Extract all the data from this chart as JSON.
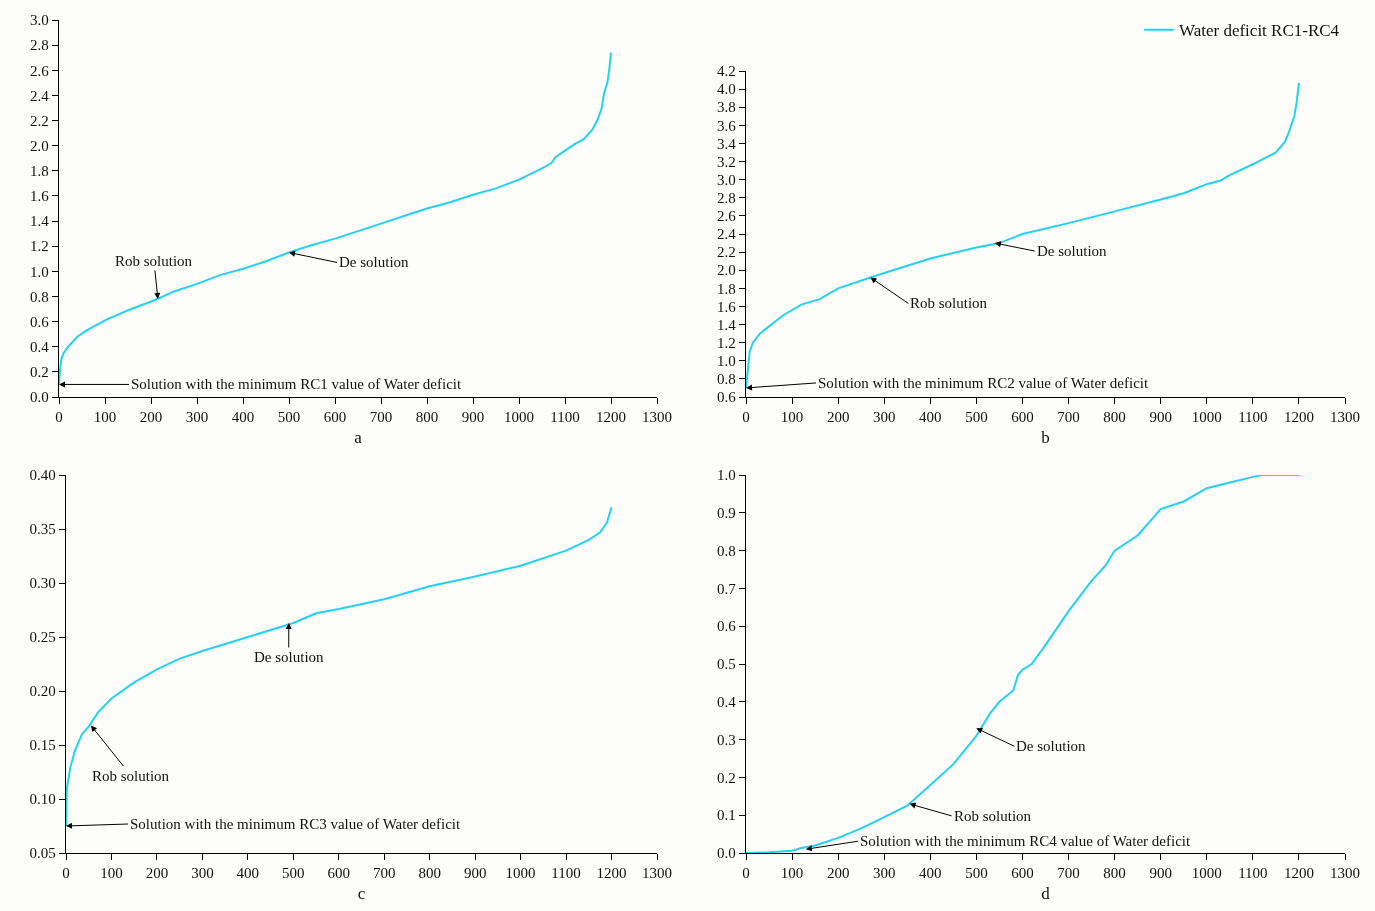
{
  "chart_data": [
    {
      "type": "line",
      "xlabel": "a",
      "xlim": [
        0,
        1300
      ],
      "xticks": [
        0,
        100,
        200,
        300,
        400,
        500,
        600,
        700,
        800,
        900,
        1000,
        1100,
        1200,
        1300
      ],
      "ylim": [
        0,
        3
      ],
      "yticks": [
        {
          "value": 0,
          "label": "0.0"
        },
        {
          "value": 0.2,
          "label": "0.2"
        },
        {
          "value": 0.4,
          "label": "0.4"
        },
        {
          "value": 0.6,
          "label": "0.6"
        },
        {
          "value": 0.8,
          "label": "0.8"
        },
        {
          "value": 1,
          "label": "1.0"
        },
        {
          "value": 1.2,
          "label": "1.2"
        },
        {
          "value": 1.4,
          "label": "1.4"
        },
        {
          "value": 1.6,
          "label": "1.6"
        },
        {
          "value": 1.8,
          "label": "1.8"
        },
        {
          "value": 2,
          "label": "2.0"
        },
        {
          "value": 2.2,
          "label": "2.2"
        },
        {
          "value": 2.4,
          "label": "2.4"
        },
        {
          "value": 2.6,
          "label": "2.6"
        },
        {
          "value": 2.8,
          "label": "2.8"
        },
        {
          "value": 3,
          "label": "3.0"
        }
      ],
      "grid": false,
      "legend": false,
      "marker": "none",
      "line_style": "solid",
      "series": [
        {
          "color": "#22d3f0",
          "x": [
            0,
            2,
            5,
            10,
            20,
            40,
            60,
            80,
            100,
            150,
            200,
            220,
            250,
            300,
            350,
            400,
            450,
            500,
            550,
            600,
            650,
            700,
            750,
            800,
            850,
            900,
            950,
            1000,
            1050,
            1070,
            1080,
            1100,
            1120,
            1140,
            1160,
            1170,
            1180,
            1185,
            1192,
            1196,
            1200
          ],
          "values": [
            0.1,
            0.2,
            0.3,
            0.35,
            0.4,
            0.48,
            0.53,
            0.57,
            0.61,
            0.69,
            0.76,
            0.79,
            0.84,
            0.9,
            0.97,
            1.02,
            1.08,
            1.15,
            1.21,
            1.26,
            1.32,
            1.38,
            1.44,
            1.5,
            1.55,
            1.61,
            1.66,
            1.73,
            1.82,
            1.86,
            1.91,
            1.96,
            2.01,
            2.05,
            2.13,
            2.2,
            2.3,
            2.42,
            2.5,
            2.6,
            2.74
          ]
        }
      ],
      "annotations": [
        {
          "text": "Solution with the minimum RC1 value of Water deficit",
          "x": 0,
          "y": 0.1
        },
        {
          "text": "Rob solution",
          "x": 215,
          "y": 0.78
        },
        {
          "text": "De solution",
          "x": 500,
          "y": 1.15
        }
      ]
    },
    {
      "type": "line",
      "xlabel": "b",
      "xlim": [
        0,
        1300
      ],
      "xticks": [
        0,
        100,
        200,
        300,
        400,
        500,
        600,
        700,
        800,
        900,
        1000,
        1100,
        1200,
        1300
      ],
      "ylim": [
        0.6,
        4.2
      ],
      "yticks": [
        0.6,
        0.8,
        {
          "value": 1,
          "label": "1.0"
        },
        1.2,
        1.4,
        1.6,
        1.8,
        {
          "value": 2,
          "label": "2.0"
        },
        2.2,
        2.4,
        2.6,
        2.8,
        {
          "value": 3,
          "label": "3.0"
        },
        3.2,
        3.4,
        3.6,
        3.8,
        {
          "value": 4,
          "label": "4.0"
        },
        4.2
      ],
      "grid": false,
      "legend": "top right",
      "marker": "none",
      "line_style": "solid",
      "series": [
        {
          "name": "Water deficit RC1-RC4",
          "color": "#22d3f0",
          "x": [
            0,
            3,
            8,
            15,
            30,
            60,
            80,
            120,
            160,
            200,
            270,
            300,
            400,
            500,
            550,
            600,
            700,
            800,
            900,
            950,
            1000,
            1030,
            1050,
            1100,
            1150,
            1170,
            1180,
            1190,
            1195,
            1200
          ],
          "values": [
            0.7,
            0.85,
            1.1,
            1.2,
            1.3,
            1.42,
            1.5,
            1.62,
            1.68,
            1.8,
            1.92,
            1.97,
            2.13,
            2.25,
            2.3,
            2.4,
            2.52,
            2.65,
            2.78,
            2.85,
            2.95,
            2.99,
            3.05,
            3.17,
            3.3,
            3.42,
            3.55,
            3.7,
            3.85,
            4.07
          ]
        }
      ],
      "annotations": [
        {
          "text": "Solution with the minimum RC2 value of Water deficit",
          "x": 0,
          "y": 0.7
        },
        {
          "text": "Rob solution",
          "x": 270,
          "y": 1.92
        },
        {
          "text": "De solution",
          "x": 540,
          "y": 2.3
        }
      ]
    },
    {
      "type": "line",
      "xlabel": "c",
      "xlim": [
        0,
        1300
      ],
      "xticks": [
        0,
        100,
        200,
        300,
        400,
        500,
        600,
        700,
        800,
        900,
        1000,
        1100,
        1200,
        1300
      ],
      "ylim": [
        0.05,
        0.4
      ],
      "yticks": [
        {
          "value": 0.05,
          "label": "0.05"
        },
        {
          "value": 0.1,
          "label": "0.10"
        },
        {
          "value": 0.15,
          "label": "0.15"
        },
        {
          "value": 0.2,
          "label": "0.20"
        },
        {
          "value": 0.25,
          "label": "0.25"
        },
        {
          "value": 0.3,
          "label": "0.30"
        },
        {
          "value": 0.35,
          "label": "0.35"
        },
        {
          "value": 0.4,
          "label": "0.40"
        }
      ],
      "grid": false,
      "legend": false,
      "marker": "none",
      "line_style": "solid",
      "series": [
        {
          "color": "#22d3f0",
          "x": [
            0,
            2,
            10,
            20,
            35,
            50,
            70,
            100,
            150,
            200,
            250,
            300,
            400,
            500,
            550,
            600,
            700,
            800,
            900,
            1000,
            1100,
            1150,
            1175,
            1190,
            1200
          ],
          "values": [
            0.075,
            0.11,
            0.13,
            0.145,
            0.16,
            0.167,
            0.18,
            0.193,
            0.208,
            0.22,
            0.23,
            0.237,
            0.25,
            0.263,
            0.272,
            0.276,
            0.285,
            0.297,
            0.306,
            0.316,
            0.33,
            0.34,
            0.347,
            0.356,
            0.37
          ]
        }
      ],
      "annotations": [
        {
          "text": "Solution with the minimum RC3 value of Water deficit",
          "x": 0,
          "y": 0.075
        },
        {
          "text": "Rob solution",
          "x": 55,
          "y": 0.168
        },
        {
          "text": "De solution",
          "x": 490,
          "y": 0.263
        }
      ]
    },
    {
      "type": "line",
      "xlabel": "d",
      "xlim": [
        0,
        1300
      ],
      "xticks": [
        0,
        100,
        200,
        300,
        400,
        500,
        600,
        700,
        800,
        900,
        1000,
        1100,
        1200,
        1300
      ],
      "ylim": [
        0,
        1
      ],
      "yticks": [
        {
          "value": 0,
          "label": "0.0"
        },
        0.1,
        0.2,
        0.3,
        0.4,
        0.5,
        0.6,
        0.7,
        0.8,
        0.9,
        {
          "value": 1,
          "label": "1.0"
        }
      ],
      "grid": false,
      "legend": false,
      "marker": "none",
      "line_style": "solid",
      "series": [
        {
          "color": "#22d3f0",
          "x": [
            0,
            50,
            100,
            120,
            150,
            200,
            250,
            300,
            350,
            400,
            450,
            500,
            530,
            550,
            580,
            590,
            600,
            620,
            650,
            700,
            750,
            780,
            800,
            850,
            900,
            950,
            1000,
            1050,
            1100,
            1120,
            1200
          ],
          "values": [
            0,
            0.002,
            0.006,
            0.013,
            0.02,
            0.04,
            0.065,
            0.095,
            0.125,
            0.18,
            0.235,
            0.31,
            0.37,
            0.4,
            0.43,
            0.47,
            0.485,
            0.5,
            0.55,
            0.64,
            0.72,
            0.76,
            0.8,
            0.84,
            0.91,
            0.93,
            0.965,
            0.98,
            0.995,
            1,
            1
          ]
        }
      ],
      "annotations": [
        {
          "text": "Solution with the minimum RC4 value of Water deficit",
          "x": 130,
          "y": 0.01
        },
        {
          "text": "Rob solution",
          "x": 355,
          "y": 0.13
        },
        {
          "text": "De solution",
          "x": 500,
          "y": 0.33
        }
      ]
    }
  ]
}
